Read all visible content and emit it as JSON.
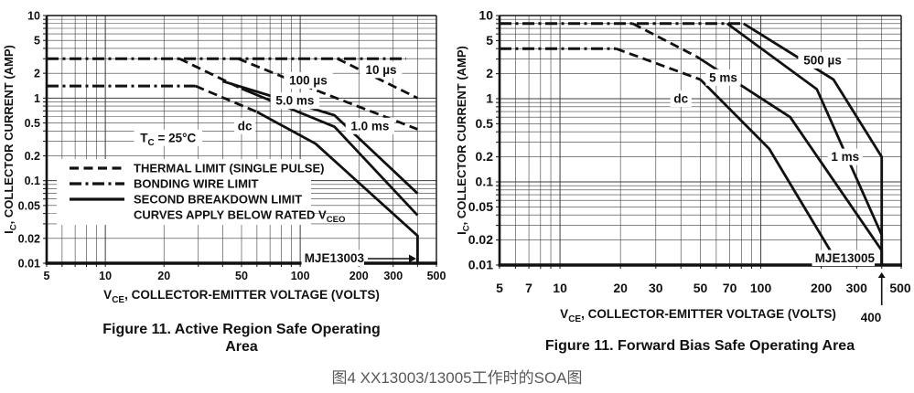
{
  "caption": "图4 XX13003/13005工作时的SOA图",
  "colors": {
    "ink": "#111111",
    "grid": "#3c3c3c",
    "caption": "#595959",
    "bg": "#ffffff"
  },
  "chart_data": [
    {
      "type": "line",
      "device_label": "MJE13003",
      "title_lines": [
        "Figure 11. Active Region Safe Operating",
        "Area"
      ],
      "xlabel_runs": [
        {
          "t": "V"
        },
        {
          "sub": "CE"
        },
        {
          "t": ", COLLECTOR-EMITTER VOLTAGE (VOLTS)"
        }
      ],
      "ylabel_runs": [
        {
          "t": "I"
        },
        {
          "sub": "C"
        },
        {
          "t": ", COLLECTOR CURRENT (AMP)"
        }
      ],
      "log_x": true,
      "log_y": true,
      "xlim": [
        5,
        500
      ],
      "ylim": [
        0.01,
        10
      ],
      "x_ticks": [
        "5",
        "10",
        "20",
        "50",
        "100",
        "200",
        "300",
        "500"
      ],
      "y_ticks": [
        "10",
        "5",
        "2",
        "1",
        "0.5",
        "0.2",
        "0.1",
        "0.05",
        "0.02",
        "0.01"
      ],
      "legend": [
        {
          "style": "dashed",
          "runs": [
            {
              "t": "THERMAL LIMIT (SINGLE PULSE)"
            }
          ]
        },
        {
          "style": "dashdot",
          "runs": [
            {
              "t": "BONDING WIRE LIMIT"
            }
          ]
        },
        {
          "style": "solid",
          "runs": [
            {
              "t": "SECOND BREAKDOWN LIMIT"
            }
          ]
        },
        {
          "style": "none",
          "runs": [
            {
              "t": "CURVES APPLY BELOW RATED V"
            },
            {
              "sub": "CEO"
            }
          ]
        }
      ],
      "series": [
        {
          "name": "bonding-wire-limit",
          "style": "dashdot",
          "points": [
            [
              5,
              3
            ],
            [
              350,
              3
            ]
          ]
        },
        {
          "name": "thermal-limit-10us",
          "style": "dashed",
          "points": [
            [
              155,
              3
            ],
            [
              400,
              1.0
            ]
          ]
        },
        {
          "name": "thermal-limit-100us",
          "style": "dashed",
          "points": [
            [
              48,
              3
            ],
            [
              120,
              1.25
            ],
            [
              400,
              0.42
            ]
          ]
        },
        {
          "name": "second-breakdown-1ms",
          "style": "solid",
          "points": [
            [
              40,
              1.6
            ],
            [
              150,
              0.62
            ],
            [
              400,
              0.07
            ]
          ]
        },
        {
          "name": "thermal-limit-5ms",
          "style": "dashed",
          "points": [
            [
              24,
              3
            ],
            [
              50,
              1.3
            ]
          ]
        },
        {
          "name": "second-breakdown-5ms",
          "style": "solid",
          "points": [
            [
              50,
              1.3
            ],
            [
              150,
              0.45
            ],
            [
              400,
              0.038
            ]
          ]
        },
        {
          "name": "dc-limit-flat",
          "style": "dashdot",
          "points": [
            [
              5,
              1.4
            ],
            [
              29,
              1.4
            ]
          ]
        },
        {
          "name": "dc-thermal",
          "style": "dashed",
          "points": [
            [
              29,
              1.4
            ],
            [
              60,
              0.68
            ]
          ]
        },
        {
          "name": "dc-second-breakdown",
          "style": "solid",
          "points": [
            [
              60,
              0.68
            ],
            [
              120,
              0.28
            ],
            [
              400,
              0.0215
            ],
            [
              400,
              0.01
            ]
          ]
        }
      ],
      "annotations": [
        {
          "name": "label-10us",
          "runs": [
            {
              "t": "10 µs"
            }
          ],
          "x": 260,
          "y": 2.2
        },
        {
          "name": "label-100us",
          "runs": [
            {
              "t": "100 µs"
            }
          ],
          "x": 110,
          "y": 1.64
        },
        {
          "name": "label-5ms",
          "runs": [
            {
              "t": "5.0 ms"
            }
          ],
          "x": 94,
          "y": 0.93
        },
        {
          "name": "label-1ms",
          "runs": [
            {
              "t": "1.0 ms"
            }
          ],
          "x": 228,
          "y": 0.46
        },
        {
          "name": "label-dc",
          "runs": [
            {
              "t": "dc"
            }
          ],
          "x": 52,
          "y": 0.46
        },
        {
          "name": "label-tc",
          "runs": [
            {
              "t": "T"
            },
            {
              "sub": "C"
            },
            {
              "t": " = 25°C"
            }
          ],
          "x": 21,
          "y": 0.33
        }
      ]
    },
    {
      "type": "line",
      "device_label": "MJE13005",
      "x_note": "400",
      "title_lines": [
        "Figure 11. Forward Bias Safe Operating Area"
      ],
      "xlabel_runs": [
        {
          "t": "V"
        },
        {
          "sub": "CE"
        },
        {
          "t": ", COLLECTOR-EMITTER VOLTAGE (VOLTS)"
        }
      ],
      "ylabel_runs": [
        {
          "t": "I"
        },
        {
          "sub": "C"
        },
        {
          "t": ", COLLECTOR CURRENT (AMP)"
        }
      ],
      "log_x": true,
      "log_y": true,
      "xlim": [
        5,
        500
      ],
      "ylim": [
        0.01,
        10
      ],
      "x_ticks": [
        "5",
        "7",
        "10",
        "20",
        "30",
        "50",
        "70",
        "100",
        "200",
        "300",
        "500"
      ],
      "y_ticks": [
        "10",
        "5",
        "2",
        "1",
        "0.5",
        "0.2",
        "0.1",
        "0.05",
        "0.02",
        "0.01"
      ],
      "legend": [],
      "series": [
        {
          "name": "bonding-wire-limit",
          "style": "dashdot",
          "points": [
            [
              5,
              8
            ],
            [
              82,
              8
            ]
          ]
        },
        {
          "name": "second-breakdown-500us",
          "style": "solid",
          "points": [
            [
              82,
              8
            ],
            [
              230,
              1.7
            ],
            [
              400,
              0.2
            ],
            [
              400,
              0.01
            ]
          ]
        },
        {
          "name": "second-breakdown-1ms",
          "style": "solid",
          "points": [
            [
              68,
              8
            ],
            [
              190,
              1.3
            ],
            [
              400,
              0.023
            ],
            [
              400,
              0.01
            ]
          ]
        },
        {
          "name": "thermal-limit-5ms",
          "style": "dashed",
          "points": [
            [
              23,
              8
            ],
            [
              48,
              3.2
            ]
          ]
        },
        {
          "name": "second-breakdown-5ms",
          "style": "solid",
          "points": [
            [
              48,
              3.2
            ],
            [
              140,
              0.6
            ],
            [
              400,
              0.015
            ],
            [
              400,
              0.01
            ]
          ]
        },
        {
          "name": "dc-limit-flat",
          "style": "dashdot",
          "points": [
            [
              5,
              4
            ],
            [
              19,
              4
            ]
          ]
        },
        {
          "name": "dc-thermal",
          "style": "dashed",
          "points": [
            [
              19,
              4
            ],
            [
              50,
              1.7
            ]
          ]
        },
        {
          "name": "dc-second-breakdown",
          "style": "solid",
          "points": [
            [
              50,
              1.7
            ],
            [
              110,
              0.25
            ],
            [
              245,
              0.01
            ]
          ]
        }
      ],
      "annotations": [
        {
          "name": "label-5ms",
          "runs": [
            {
              "t": "5 ms"
            }
          ],
          "x": 65,
          "y": 1.8
        },
        {
          "name": "label-500us",
          "runs": [
            {
              "t": "500 µs"
            }
          ],
          "x": 203,
          "y": 2.9
        },
        {
          "name": "label-dc",
          "runs": [
            {
              "t": "dc"
            }
          ],
          "x": 40,
          "y": 1.0
        },
        {
          "name": "label-1ms",
          "runs": [
            {
              "t": "1 ms"
            }
          ],
          "x": 263,
          "y": 0.2
        }
      ]
    }
  ]
}
